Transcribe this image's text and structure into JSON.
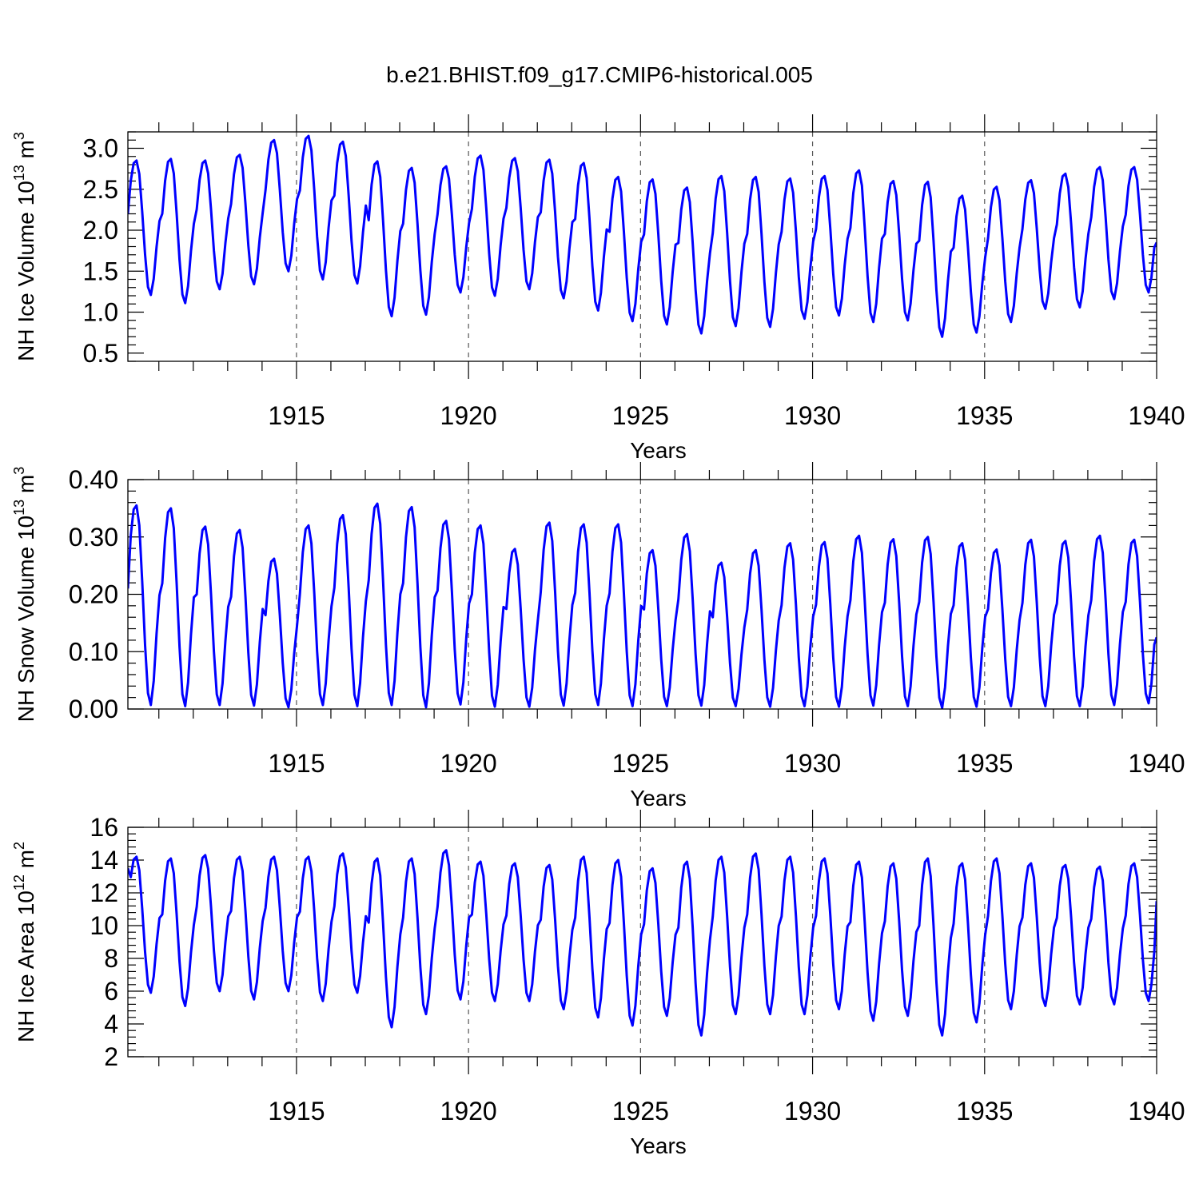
{
  "chart_data": {
    "title": "b.e21.BHIST.f09_g17.CMIP6-historical.005",
    "series_color": "#0000ff",
    "panels": [
      {
        "type": "line",
        "series_name": "NH Ice Volume",
        "ylabel": "NH Ice Volume",
        "yunit": "10",
        "yunit_exp": "13",
        "yunit_var": "m",
        "yunit_var_exp": "3",
        "xlabel": "Years",
        "xlim": [
          1910.1,
          1940.0
        ],
        "ylim": [
          0.4,
          3.2
        ],
        "yticks": [
          0.5,
          1.0,
          1.5,
          2.0,
          2.5,
          3.0
        ],
        "yticks_labels": [
          "0.5",
          "1.0",
          "1.5",
          "2.0",
          "2.5",
          "3.0"
        ],
        "xticks": [
          1915,
          1920,
          1925,
          1930,
          1935,
          1940
        ],
        "xticks_labels": [
          "1915",
          "1920",
          "1925",
          "1930",
          "1935",
          "1940"
        ],
        "start_value": 2.2,
        "end_value": 1.85,
        "annual_max": [
          2.85,
          2.87,
          2.85,
          2.92,
          3.1,
          3.15,
          3.08,
          2.84,
          2.76,
          2.78,
          2.91,
          2.88,
          2.86,
          2.82,
          2.65,
          2.62,
          2.52,
          2.66,
          2.65,
          2.63,
          2.66,
          2.73,
          2.6,
          2.59,
          2.42,
          2.53,
          2.61,
          2.69,
          2.77,
          2.77
        ],
        "annual_min": [
          1.21,
          1.11,
          1.28,
          1.34,
          1.5,
          1.4,
          1.35,
          0.95,
          0.97,
          1.24,
          1.2,
          1.28,
          1.17,
          1.02,
          0.89,
          0.85,
          0.74,
          0.83,
          0.82,
          0.92,
          0.96,
          0.88,
          0.9,
          0.7,
          0.75,
          0.88,
          1.04,
          1.06,
          1.16,
          1.24
        ]
      },
      {
        "type": "line",
        "series_name": "NH Snow Volume",
        "ylabel": "NH Snow Volume",
        "yunit": "10",
        "yunit_exp": "13",
        "yunit_var": "m",
        "yunit_var_exp": "3",
        "xlabel": "Years",
        "xlim": [
          1910.1,
          1940.0
        ],
        "ylim": [
          0.0,
          0.4
        ],
        "yticks": [
          0.0,
          0.1,
          0.2,
          0.3,
          0.4
        ],
        "yticks_labels": [
          "0.00",
          "0.10",
          "0.20",
          "0.30",
          "0.40"
        ],
        "xticks": [
          1915,
          1920,
          1925,
          1930,
          1935,
          1940
        ],
        "xticks_labels": [
          "1915",
          "1920",
          "1925",
          "1930",
          "1935",
          "1940"
        ],
        "start_value": 0.21,
        "end_value": 0.125,
        "annual_max": [
          0.355,
          0.35,
          0.318,
          0.312,
          0.262,
          0.32,
          0.338,
          0.358,
          0.352,
          0.328,
          0.32,
          0.279,
          0.325,
          0.322,
          0.322,
          0.277,
          0.305,
          0.255,
          0.277,
          0.289,
          0.291,
          0.302,
          0.296,
          0.3,
          0.289,
          0.278,
          0.295,
          0.293,
          0.302,
          0.295
        ],
        "annual_min": [
          0.007,
          0.005,
          0.007,
          0.006,
          0.003,
          0.007,
          0.005,
          0.007,
          0.003,
          0.008,
          0.004,
          0.004,
          0.006,
          0.007,
          0.005,
          0.005,
          0.006,
          0.005,
          0.004,
          0.005,
          0.004,
          0.006,
          0.005,
          0.002,
          0.004,
          0.005,
          0.005,
          0.005,
          0.007,
          0.01
        ]
      },
      {
        "type": "line",
        "series_name": "NH Ice Area",
        "ylabel": "NH Ice Area",
        "yunit": "10",
        "yunit_exp": "12",
        "yunit_var": "m",
        "yunit_var_exp": "2",
        "xlabel": "Years",
        "xlim": [
          1910.1,
          1940.0
        ],
        "ylim": [
          2,
          16
        ],
        "yticks": [
          2,
          4,
          6,
          8,
          10,
          12,
          14,
          16
        ],
        "yticks_labels": [
          "2",
          "4",
          "6",
          "8",
          "10",
          "12",
          "14",
          "16"
        ],
        "xticks": [
          1915,
          1920,
          1925,
          1930,
          1935,
          1940
        ],
        "xticks_labels": [
          "1915",
          "1920",
          "1925",
          "1930",
          "1935",
          "1940"
        ],
        "start_value": 13.5,
        "end_value": 11.5,
        "annual_max": [
          14.2,
          14.1,
          14.3,
          14.2,
          14.2,
          14.2,
          14.4,
          14.1,
          14.1,
          14.6,
          13.9,
          13.8,
          13.7,
          14.2,
          14.0,
          13.5,
          13.9,
          14.2,
          14.4,
          14.2,
          14.1,
          13.9,
          13.8,
          14.1,
          13.8,
          14.1,
          13.8,
          13.7,
          13.6,
          13.8
        ],
        "annual_min": [
          5.9,
          5.1,
          6.0,
          5.5,
          6.0,
          5.4,
          5.9,
          3.8,
          4.6,
          5.5,
          5.4,
          5.4,
          4.9,
          4.4,
          3.9,
          4.5,
          3.3,
          4.6,
          4.6,
          4.6,
          4.9,
          4.2,
          4.5,
          3.3,
          4.1,
          4.9,
          5.1,
          5.2,
          5.2,
          5.4
        ]
      }
    ]
  }
}
